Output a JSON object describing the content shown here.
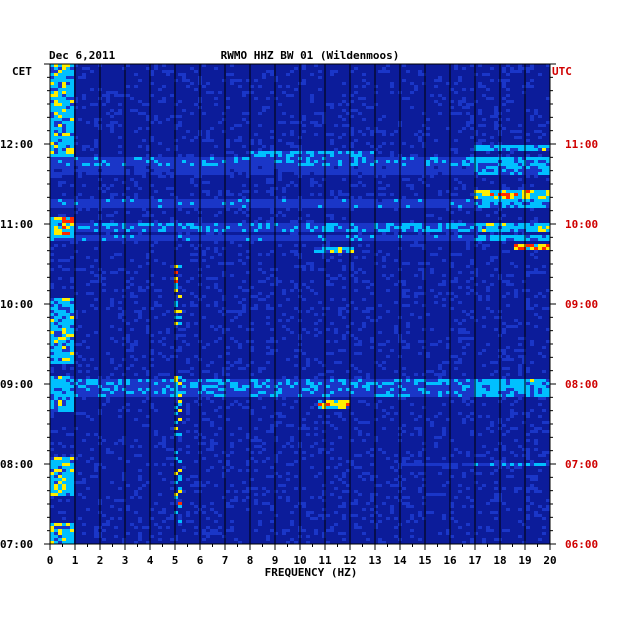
{
  "chart_data": {
    "type": "heatmap",
    "header_date": "Dec 6,2011",
    "title": "RWMO HHZ BW 01 (Wildenmoos)",
    "xlabel": "FREQUENCY (HZ)",
    "left_axis_label": "CET",
    "right_axis_label": "UTC",
    "xlim": [
      0,
      20
    ],
    "x_ticks": [
      "0",
      "1",
      "2",
      "3",
      "4",
      "5",
      "6",
      "7",
      "8",
      "9",
      "10",
      "11",
      "12",
      "13",
      "14",
      "15",
      "16",
      "17",
      "18",
      "19",
      "20"
    ],
    "cet_ticks": [
      "12:00",
      "11:00",
      "10:00",
      "09:00",
      "08:00",
      "07:00"
    ],
    "utc_ticks": [
      "11:00",
      "10:00",
      "09:00",
      "08:00",
      "07:00",
      "06:00"
    ],
    "time_range_cet": [
      "07:00",
      "13:00"
    ],
    "grid_vertical": true,
    "colors": {
      "background": "#0c1c9a",
      "low": "#1a36c8",
      "mid": "#00c0ff",
      "high": "#ffee00",
      "peak": "#ff2a00",
      "grid": "#000000",
      "utc_label": "#d00000"
    },
    "energy_bands": [
      {
        "start": "08:41",
        "end": "08:49",
        "fmin": 10.8,
        "fmax": 12.0,
        "level": 0.85
      },
      {
        "start": "08:51",
        "end": "08:56",
        "fmin": 0.0,
        "fmax": 20.0,
        "level": 0.5
      },
      {
        "start": "08:58",
        "end": "09:03",
        "fmin": 0.0,
        "fmax": 20.0,
        "level": 0.55
      },
      {
        "start": "07:58",
        "end": "08:01",
        "fmin": 14.0,
        "fmax": 20.0,
        "level": 0.45
      },
      {
        "start": "10:38",
        "end": "10:43",
        "fmin": 10.5,
        "fmax": 12.2,
        "level": 0.8
      },
      {
        "start": "10:41",
        "end": "10:44",
        "fmin": 18.5,
        "fmax": 20.0,
        "level": 0.85
      },
      {
        "start": "10:47",
        "end": "10:52",
        "fmin": 0.0,
        "fmax": 20.0,
        "level": 0.45
      },
      {
        "start": "10:54",
        "end": "11:00",
        "fmin": 0.0,
        "fmax": 20.0,
        "level": 0.55
      },
      {
        "start": "11:12",
        "end": "11:18",
        "fmin": 0.0,
        "fmax": 20.0,
        "level": 0.45
      },
      {
        "start": "11:18",
        "end": "11:26",
        "fmin": 17.0,
        "fmax": 20.0,
        "level": 0.7
      },
      {
        "start": "11:37",
        "end": "11:44",
        "fmin": 0.0,
        "fmax": 20.0,
        "level": 0.4
      },
      {
        "start": "11:44",
        "end": "11:50",
        "fmin": 0.0,
        "fmax": 20.0,
        "level": 0.5
      },
      {
        "start": "11:50",
        "end": "11:55",
        "fmin": 8.0,
        "fmax": 13.0,
        "level": 0.6
      },
      {
        "start": "11:55",
        "end": "12:00",
        "fmin": 17.0,
        "fmax": 20.0,
        "level": 0.55
      }
    ],
    "low_freq_activity": [
      {
        "start": "07:00",
        "end": "07:15",
        "level": 0.7
      },
      {
        "start": "07:35",
        "end": "08:05",
        "level": 0.75
      },
      {
        "start": "08:40",
        "end": "09:05",
        "level": 0.65
      },
      {
        "start": "09:15",
        "end": "10:05",
        "level": 0.7
      },
      {
        "start": "10:50",
        "end": "11:05",
        "level": 0.8
      },
      {
        "start": "11:50",
        "end": "13:00",
        "level": 0.7
      }
    ],
    "spectral_line_5hz": [
      {
        "start": "07:15",
        "end": "08:10",
        "level": 0.8
      },
      {
        "start": "08:20",
        "end": "09:05",
        "level": 0.75
      },
      {
        "start": "09:45",
        "end": "10:30",
        "level": 0.85
      }
    ]
  }
}
